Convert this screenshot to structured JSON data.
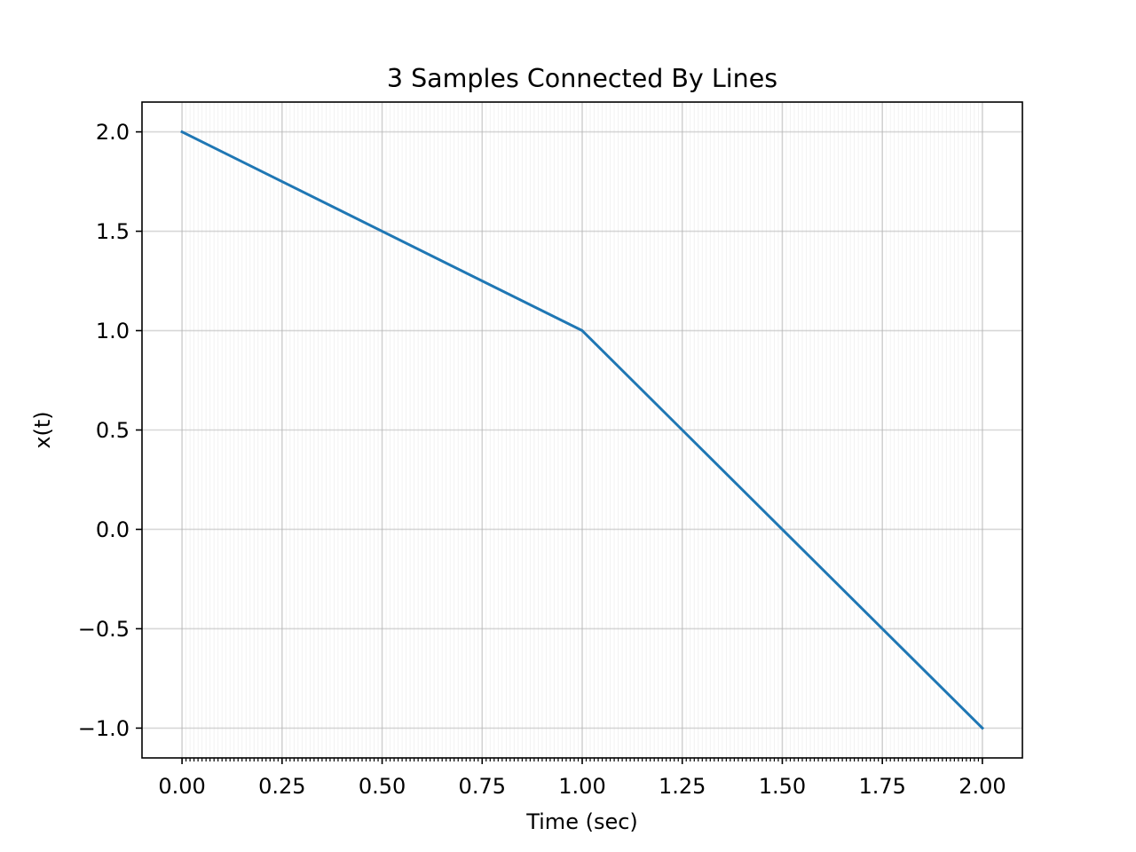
{
  "chart_data": {
    "type": "line",
    "title": "3 Samples Connected By Lines",
    "xlabel": "Time (sec)",
    "ylabel": "x(t)",
    "xlim": [
      -0.1,
      2.1
    ],
    "ylim": [
      -1.15,
      2.15
    ],
    "x_ticks": [
      0,
      0.25,
      0.5,
      0.75,
      1.0,
      1.25,
      1.5,
      1.75,
      2.0
    ],
    "x_tick_labels": [
      "0.00",
      "0.25",
      "0.50",
      "0.75",
      "1.00",
      "1.25",
      "1.50",
      "1.75",
      "2.00"
    ],
    "x_minor_step": 0.01,
    "y_ticks": [
      2.0,
      1.5,
      1.0,
      0.5,
      0.0,
      -0.5,
      -1.0
    ],
    "y_tick_labels": [
      "2.0",
      "1.5",
      "1.0",
      "0.5",
      "0.0",
      "−0.5",
      "−1.0"
    ],
    "grid": true,
    "minor_grid": true,
    "series": [
      {
        "x": [
          0,
          1,
          2
        ],
        "y": [
          2,
          1,
          -1
        ],
        "color": "#1f77b4"
      }
    ]
  }
}
